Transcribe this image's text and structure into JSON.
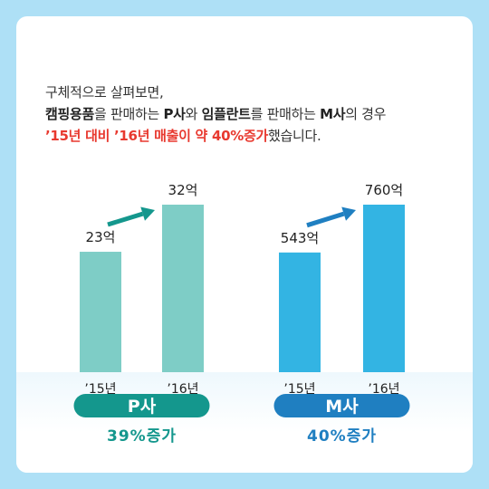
{
  "intro": {
    "line1": "구체적으로 살펴보면,",
    "line2": [
      {
        "t": "캠핑용품",
        "s": "b"
      },
      {
        "t": "을 판매하는 ",
        "s": ""
      },
      {
        "t": "P사",
        "s": "b"
      },
      {
        "t": "와 ",
        "s": ""
      },
      {
        "t": "임플란트",
        "s": "b"
      },
      {
        "t": "를 판매하는 ",
        "s": ""
      },
      {
        "t": "M사",
        "s": "b"
      },
      {
        "t": "의 경우",
        "s": ""
      }
    ],
    "line3": [
      {
        "t": "’15년 대비 ’16년 매출이 약 40%증가",
        "s": "red"
      },
      {
        "t": "했습니다.",
        "s": ""
      }
    ]
  },
  "chart_data": [
    {
      "type": "bar",
      "company": "P사",
      "categories": [
        "’15년",
        "’16년"
      ],
      "values": [
        23,
        32
      ],
      "value_labels": [
        "23억",
        "32억"
      ],
      "growth_label": "39%증가",
      "bar_color": "#7ecdc6",
      "accent_color": "#14978d"
    },
    {
      "type": "bar",
      "company": "M사",
      "categories": [
        "’15년",
        "’16년"
      ],
      "values": [
        543,
        760
      ],
      "value_labels": [
        "543억",
        "760억"
      ],
      "growth_label": "40%증가",
      "bar_color": "#33b4e3",
      "accent_color": "#1f7fc1"
    }
  ]
}
